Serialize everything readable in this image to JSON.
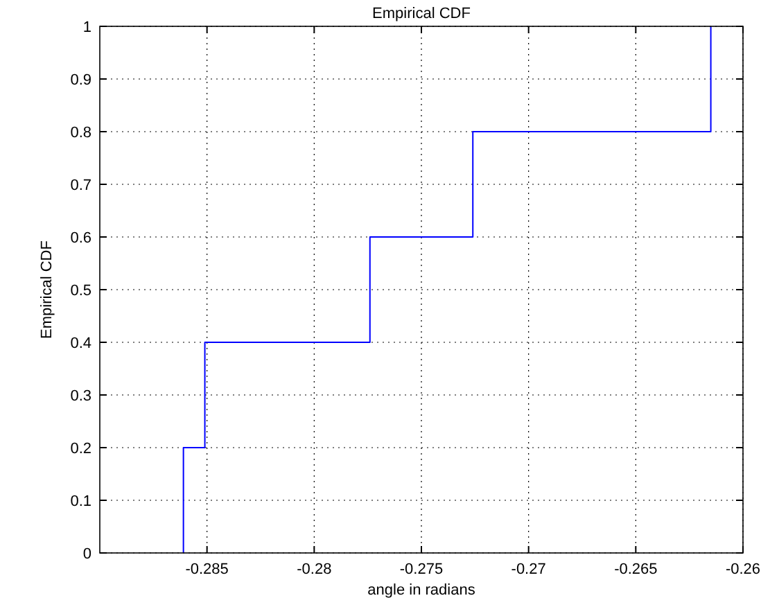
{
  "chart_data": {
    "type": "step",
    "title": "Empirical CDF",
    "xlabel": "angle in radians",
    "ylabel": "Empirical CDF",
    "x": [
      -0.2861,
      -0.2851,
      -0.2774,
      -0.2726,
      -0.2615,
      -0.2615
    ],
    "series": [
      {
        "color": "#0000ff",
        "values": [
          0,
          0.2,
          0.4,
          0.6,
          0.8,
          1
        ]
      }
    ],
    "xlim": [
      -0.29,
      -0.26
    ],
    "xticks": [
      -0.285,
      -0.28,
      -0.275,
      -0.27,
      -0.265,
      -0.26
    ],
    "ylim": [
      0,
      1
    ],
    "yticks": [
      0,
      0.1,
      0.2,
      0.3,
      0.4,
      0.5,
      0.6,
      0.7,
      0.8,
      0.9,
      1
    ],
    "grid": true,
    "line_style": "solid"
  }
}
